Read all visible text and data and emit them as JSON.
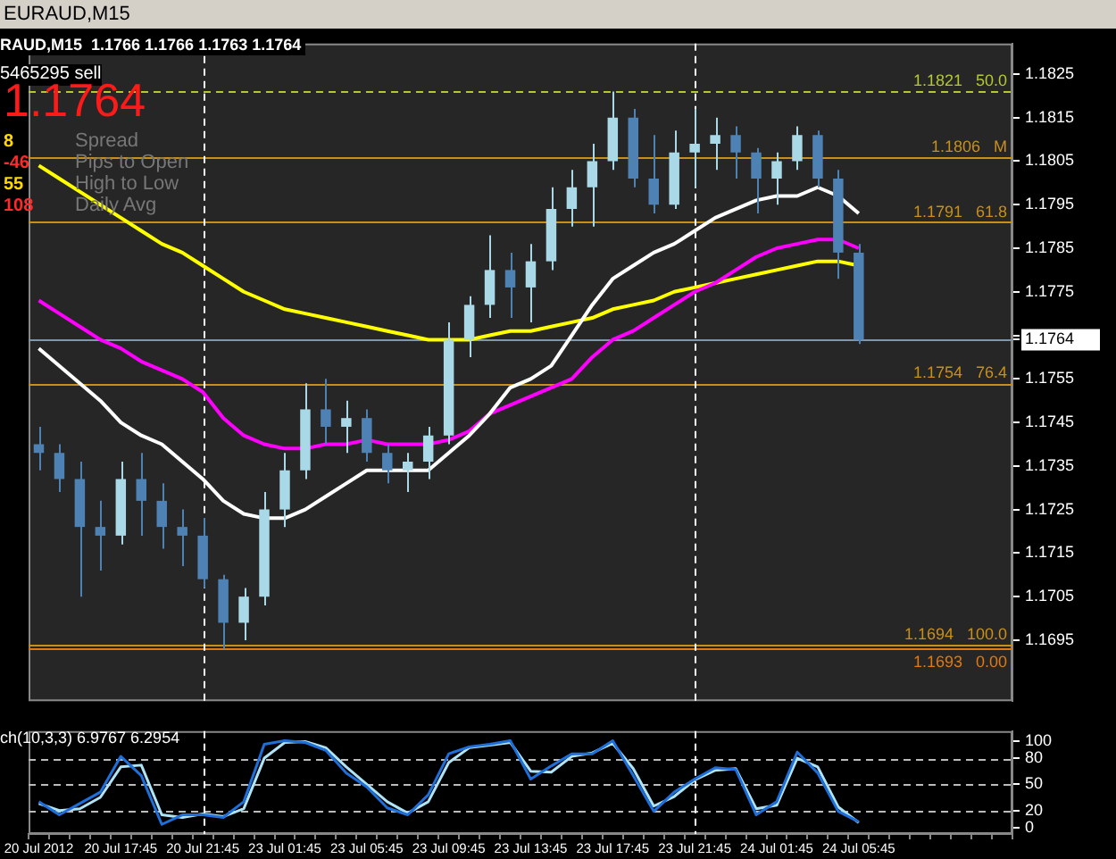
{
  "chart_data": [
    {
      "type": "candlestick",
      "title": "EURAUD,M15",
      "subtitle": "RAUD,M15  1.1766 1.1766 1.1763 1.1764",
      "annotations": [
        "5465295 sell",
        "1.1764",
        "8",
        "Spread",
        "-46",
        "Pips to Open",
        "55",
        "High to Low",
        "108",
        "Daily Avg"
      ],
      "categories": [
        "20 Jul 2012",
        null,
        null,
        null,
        "20 Jul 17:45",
        null,
        null,
        null,
        "20 Jul 21:45",
        null,
        null,
        null,
        "23 Jul 01:45",
        null,
        null,
        null,
        "23 Jul 05:45",
        null,
        null,
        null,
        "23 Jul 09:45",
        null,
        null,
        null,
        "23 Jul 13:45",
        null,
        null,
        null,
        "23 Jul 17:45",
        null,
        null,
        null,
        "23 Jul 21:45",
        null,
        null,
        null,
        "24 Jul 01:45",
        null,
        null,
        null,
        "24 Jul 05:45",
        null,
        null,
        null,
        null,
        null,
        null,
        null
      ],
      "ohlc": [
        [
          1.174,
          1.1744,
          1.1734,
          1.1738
        ],
        [
          1.1738,
          1.174,
          1.1729,
          1.1732
        ],
        [
          1.1732,
          1.1736,
          1.1705,
          1.1721
        ],
        [
          1.1721,
          1.1727,
          1.1711,
          1.1719
        ],
        [
          1.1719,
          1.1736,
          1.1717,
          1.1732
        ],
        [
          1.1732,
          1.1738,
          1.1719,
          1.1727
        ],
        [
          1.1727,
          1.1731,
          1.1716,
          1.1721
        ],
        [
          1.1721,
          1.1725,
          1.1712,
          1.1719
        ],
        [
          1.1719,
          1.1723,
          1.1707,
          1.1709
        ],
        [
          1.1709,
          1.171,
          1.1693,
          1.1699
        ],
        [
          1.1699,
          1.1707,
          1.1695,
          1.1705
        ],
        [
          1.1705,
          1.1729,
          1.1703,
          1.1725
        ],
        [
          1.1725,
          1.1738,
          1.1721,
          1.1734
        ],
        [
          1.1734,
          1.1754,
          1.1732,
          1.1748
        ],
        [
          1.1748,
          1.1755,
          1.174,
          1.1744
        ],
        [
          1.1744,
          1.175,
          1.1738,
          1.1746
        ],
        [
          1.1746,
          1.1748,
          1.1736,
          1.1738
        ],
        [
          1.1738,
          1.174,
          1.1731,
          1.1734
        ],
        [
          1.1734,
          1.1738,
          1.1729,
          1.1736
        ],
        [
          1.1736,
          1.1744,
          1.1732,
          1.1742
        ],
        [
          1.1742,
          1.1768,
          1.174,
          1.1764
        ],
        [
          1.1764,
          1.1774,
          1.176,
          1.1772
        ],
        [
          1.1772,
          1.1788,
          1.1769,
          1.178
        ],
        [
          1.178,
          1.1784,
          1.1769,
          1.1776
        ],
        [
          1.1776,
          1.1786,
          1.1768,
          1.1782
        ],
        [
          1.1782,
          1.1799,
          1.178,
          1.1794
        ],
        [
          1.1794,
          1.1803,
          1.179,
          1.1799
        ],
        [
          1.1799,
          1.1809,
          1.179,
          1.1805
        ],
        [
          1.1805,
          1.1821,
          1.1803,
          1.1815
        ],
        [
          1.1815,
          1.1817,
          1.1799,
          1.1801
        ],
        [
          1.1801,
          1.1811,
          1.1793,
          1.1795
        ],
        [
          1.1795,
          1.1812,
          1.1794,
          1.1807
        ],
        [
          1.1807,
          1.1817,
          1.1799,
          1.1809
        ],
        [
          1.1809,
          1.1815,
          1.1803,
          1.1811
        ],
        [
          1.1811,
          1.1813,
          1.1801,
          1.1807
        ],
        [
          1.1807,
          1.1808,
          1.1793,
          1.1801
        ],
        [
          1.1801,
          1.1807,
          1.1795,
          1.1805
        ],
        [
          1.1805,
          1.1813,
          1.1803,
          1.1811
        ],
        [
          1.1811,
          1.1812,
          1.1799,
          1.1801
        ],
        [
          1.1801,
          1.1803,
          1.1778,
          1.1784
        ],
        [
          1.1784,
          1.1786,
          1.1763,
          1.1764
        ],
        null,
        null,
        null,
        null,
        null,
        null,
        null
      ],
      "colors": [
        "#4f82b4",
        "#4f82b4",
        "#4f82b4",
        "#4f82b4",
        "#a9d8e6",
        "#4f82b4",
        "#4f82b4",
        "#4f82b4",
        "#4f82b4",
        "#4f82b4",
        "#a9d8e6",
        "#a9d8e6",
        "#a9d8e6",
        "#a9d8e6",
        "#4f82b4",
        "#a9d8e6",
        "#4f82b4",
        "#4f82b4",
        "#a9d8e6",
        "#a9d8e6",
        "#a9d8e6",
        "#a9d8e6",
        "#a9d8e6",
        "#4f82b4",
        "#a9d8e6",
        "#a9d8e6",
        "#a9d8e6",
        "#a9d8e6",
        "#a9d8e6",
        "#4f82b4",
        "#4f82b4",
        "#a9d8e6",
        "#a9d8e6",
        "#a9d8e6",
        "#4f82b4",
        "#4f82b4",
        "#a9d8e6",
        "#a9d8e6",
        "#4f82b4",
        "#4f82b4",
        "#4f82b4",
        null,
        null,
        null,
        null,
        null,
        null,
        null
      ],
      "series": [
        {
          "type": "line",
          "color": "#ffffff",
          "values": [
            1.1762,
            1.1758,
            1.1754,
            1.175,
            1.1745,
            1.1742,
            1.174,
            1.1736,
            1.1732,
            1.1727,
            1.1724,
            1.1723,
            1.1723,
            1.1725,
            1.1728,
            1.1731,
            1.1734,
            1.1734,
            1.1734,
            1.1734,
            1.1738,
            1.1742,
            1.1747,
            1.1753,
            1.1755,
            1.1758,
            1.1765,
            1.1772,
            1.1778,
            1.1781,
            1.1784,
            1.1786,
            1.1789,
            1.1792,
            1.1794,
            1.1796,
            1.1797,
            1.1797,
            1.1799,
            1.1797,
            1.1793,
            null,
            null,
            null,
            null,
            null,
            null,
            null
          ]
        },
        {
          "type": "line",
          "color": "#ff00ff",
          "values": [
            1.1773,
            1.177,
            1.1767,
            1.1764,
            1.1762,
            1.1759,
            1.1757,
            1.1755,
            1.1752,
            1.1746,
            1.1742,
            1.174,
            1.1739,
            1.1739,
            1.174,
            1.174,
            1.1741,
            1.174,
            1.174,
            1.174,
            1.1741,
            1.1743,
            1.1747,
            1.1749,
            1.1751,
            1.1753,
            1.1755,
            1.176,
            1.1764,
            1.1766,
            1.1769,
            1.1772,
            1.1775,
            1.1777,
            1.178,
            1.1783,
            1.1785,
            1.1786,
            1.1787,
            1.1787,
            1.1785,
            null,
            null,
            null,
            null,
            null,
            null,
            null
          ]
        },
        {
          "type": "line",
          "color": "#ffff00",
          "values": [
            1.1804,
            1.1801,
            1.1798,
            1.1795,
            1.1792,
            1.1789,
            1.1786,
            1.1784,
            1.1781,
            1.1778,
            1.1775,
            1.1773,
            1.1771,
            1.177,
            1.1769,
            1.1768,
            1.1767,
            1.1766,
            1.1765,
            1.1764,
            1.1764,
            1.1764,
            1.1765,
            1.1766,
            1.1766,
            1.1767,
            1.1768,
            1.1769,
            1.1771,
            1.1772,
            1.1773,
            1.1775,
            1.1776,
            1.1777,
            1.1778,
            1.1779,
            1.178,
            1.1781,
            1.1782,
            1.1782,
            1.1781,
            null,
            null,
            null,
            null,
            null,
            null,
            null
          ]
        }
      ],
      "ylim": [
        1.1681,
        1.1832
      ],
      "yticks": [
        1.1695,
        1.1705,
        1.1715,
        1.1725,
        1.1735,
        1.1745,
        1.1755,
        {
          "value": 1.1764,
          "label": "1.1764"
        },
        {
          "value": 1.1765,
          "label": null
        },
        1.1775,
        1.1785,
        1.1795,
        1.1805,
        1.1815,
        1.1825
      ],
      "ref_lines": [
        {
          "axis": "y",
          "value": 1.1821,
          "label": "1.1821   50.0",
          "color": "#b5c832",
          "line_style": "dashed"
        },
        {
          "axis": "y",
          "value": 1.1806,
          "label": "1.1806   M",
          "color": "#c8901a"
        },
        {
          "axis": "y",
          "value": 1.1791,
          "label": "1.1791   61.8",
          "color": "#c8901a"
        },
        {
          "axis": "y",
          "value": 1.1764,
          "color": "#8096aa"
        },
        {
          "axis": "y",
          "value": 1.1754,
          "label": "1.1754   76.4",
          "color": "#c8901a"
        },
        {
          "axis": "y",
          "value": 1.1694,
          "label": "1.1694   100.0",
          "color": "#c8901a"
        },
        {
          "axis": "y",
          "value": 1.1693,
          "label": "1.1693   0.00",
          "color": "#e07a10"
        },
        {
          "axis": "x",
          "value": "20 Jul 21:45",
          "color": "#ffffff",
          "line_style": "dashed"
        },
        {
          "axis": "x",
          "value": "23 Jul 21:45",
          "color": "#ffffff",
          "line_style": "dashed"
        }
      ],
      "tick_labels": "y"
    },
    {
      "type": "line",
      "title": "ch(10,3,3) 6.9767 6.2954",
      "categories": [
        "20 Jul 2012",
        null,
        null,
        null,
        "20 Jul 17:45",
        null,
        null,
        null,
        "20 Jul 21:45",
        null,
        null,
        null,
        "23 Jul 01:45",
        null,
        null,
        null,
        "23 Jul 05:45",
        null,
        null,
        null,
        "23 Jul 09:45",
        null,
        null,
        null,
        "23 Jul 13:45",
        null,
        null,
        null,
        "23 Jul 17:45",
        null,
        null,
        null,
        "23 Jul 21:45",
        null,
        null,
        null,
        "24 Jul 01:45",
        null,
        null,
        null,
        "24 Jul 05:45",
        null,
        null,
        null,
        null,
        null,
        null,
        null
      ],
      "series": [
        {
          "color": "#1e6fd9",
          "values": [
            30,
            15,
            28,
            41,
            82,
            60,
            4,
            15,
            15,
            12,
            30,
            96,
            100,
            98,
            89,
            63,
            47,
            23,
            15,
            38,
            85,
            93,
            96,
            100,
            56,
            71,
            85,
            85,
            100,
            60,
            19,
            41,
            56,
            69,
            67,
            15,
            30,
            87,
            63,
            19,
            7,
            null,
            null,
            null,
            null,
            null,
            null,
            null
          ]
        },
        {
          "color": "#b0e4f4",
          "values": [
            28,
            20,
            22,
            35,
            70,
            72,
            15,
            12,
            16,
            13,
            22,
            80,
            98,
            99,
            92,
            70,
            50,
            30,
            17,
            30,
            75,
            92,
            95,
            98,
            65,
            64,
            82,
            86,
            97,
            68,
            25,
            36,
            55,
            66,
            68,
            22,
            26,
            80,
            70,
            24,
            6,
            null,
            null,
            null,
            null,
            null,
            null,
            null
          ]
        }
      ],
      "ylim": [
        -7,
        111
      ],
      "yticks": [
        0,
        20,
        50,
        80,
        100
      ],
      "ref_lines": [
        {
          "axis": "y",
          "value": 20,
          "color": "#bbbbbb",
          "line_style": "dashed"
        },
        {
          "axis": "y",
          "value": 50,
          "color": "#bbbbbb",
          "line_style": "dashed"
        },
        {
          "axis": "y",
          "value": 80,
          "color": "#bbbbbb",
          "line_style": "dashed"
        },
        {
          "axis": "x",
          "value": "20 Jul 21:45",
          "color": "#ffffff",
          "line_style": "dashed"
        },
        {
          "axis": "x",
          "value": "23 Jul 21:45",
          "color": "#ffffff",
          "line_style": "dashed"
        }
      ]
    }
  ]
}
